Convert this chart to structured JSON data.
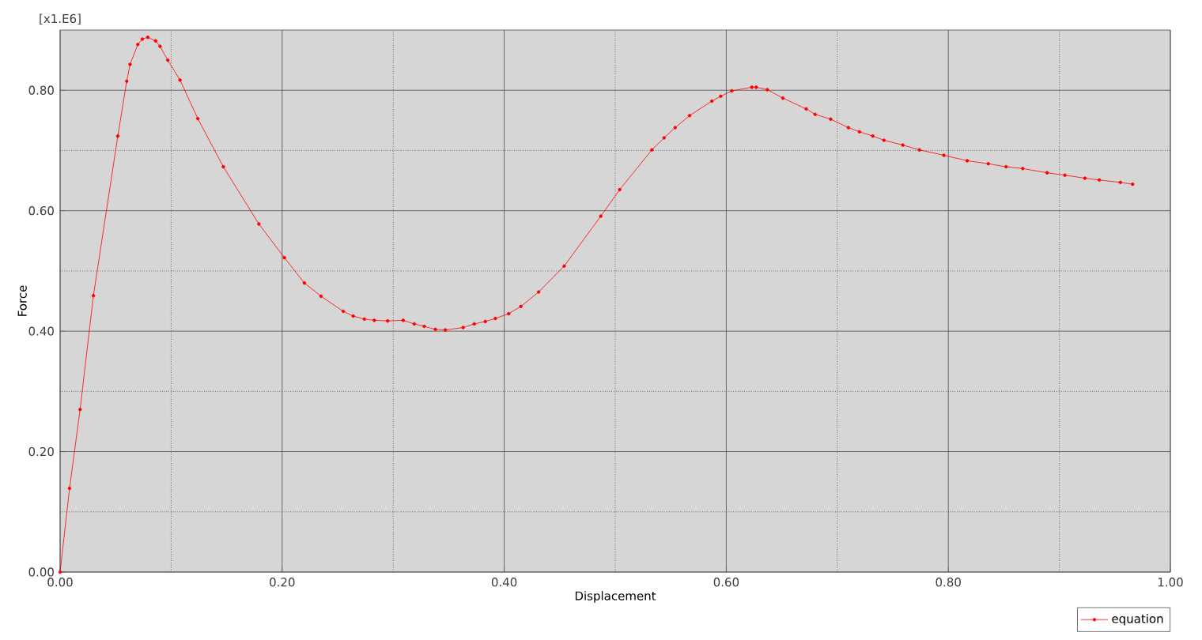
{
  "chart_data": {
    "type": "line",
    "xlabel": "Displacement",
    "ylabel": "Force",
    "annotations": [
      "[x1.E6]"
    ],
    "xlim": [
      0,
      1
    ],
    "ylim": [
      0,
      0.9
    ],
    "xticks": [
      {
        "value": 0,
        "label": "0.00"
      },
      {
        "value": 0.1,
        "label": null
      },
      {
        "value": 0.2,
        "label": "0.20"
      },
      {
        "value": 0.3,
        "label": null
      },
      {
        "value": 0.4,
        "label": "0.40"
      },
      {
        "value": 0.5,
        "label": null
      },
      {
        "value": 0.6,
        "label": "0.60"
      },
      {
        "value": 0.7,
        "label": null
      },
      {
        "value": 0.8,
        "label": "0.80"
      },
      {
        "value": 0.9,
        "label": null
      },
      {
        "value": 1,
        "label": "1.00"
      }
    ],
    "yticks": [
      {
        "value": 0,
        "label": "0.00"
      },
      {
        "value": 0.1,
        "label": null
      },
      {
        "value": 0.2,
        "label": "0.20"
      },
      {
        "value": 0.3,
        "label": null
      },
      {
        "value": 0.4,
        "label": "0.40"
      },
      {
        "value": 0.5,
        "label": null
      },
      {
        "value": 0.6,
        "label": "0.60"
      },
      {
        "value": 0.7,
        "label": null
      },
      {
        "value": 0.8,
        "label": "0.80"
      }
    ],
    "grid": true,
    "legend": "bottom right",
    "marker": "circle",
    "line_style": "solid",
    "series": [
      {
        "name": "equation",
        "color": "#ff0000",
        "x": [
          0,
          0.0085,
          0.018,
          0.03,
          0.052,
          0.06,
          0.063,
          0.07,
          0.074,
          0.079,
          0.086,
          0.09,
          0.097,
          0.108,
          0.124,
          0.147,
          0.179,
          0.202,
          0.22,
          0.235,
          0.255,
          0.264,
          0.274,
          0.283,
          0.295,
          0.309,
          0.319,
          0.328,
          0.338,
          0.347,
          0.363,
          0.373,
          0.383,
          0.392,
          0.404,
          0.415,
          0.431,
          0.454,
          0.487,
          0.504,
          0.533,
          0.544,
          0.554,
          0.567,
          0.587,
          0.595,
          0.605,
          0.623,
          0.627,
          0.637,
          0.651,
          0.672,
          0.68,
          0.694,
          0.71,
          0.72,
          0.732,
          0.742,
          0.759,
          0.774,
          0.796,
          0.817,
          0.836,
          0.852,
          0.867,
          0.889,
          0.905,
          0.923,
          0.936,
          0.955,
          0.966
        ],
        "values": [
          0,
          0.139,
          0.27,
          0.459,
          0.724,
          0.815,
          0.843,
          0.876,
          0.885,
          0.888,
          0.882,
          0.873,
          0.85,
          0.817,
          0.753,
          0.673,
          0.578,
          0.522,
          0.48,
          0.458,
          0.433,
          0.425,
          0.42,
          0.418,
          0.417,
          0.418,
          0.412,
          0.408,
          0.403,
          0.402,
          0.406,
          0.412,
          0.416,
          0.421,
          0.429,
          0.441,
          0.465,
          0.508,
          0.591,
          0.635,
          0.701,
          0.721,
          0.738,
          0.758,
          0.782,
          0.79,
          0.799,
          0.805,
          0.805,
          0.801,
          0.787,
          0.769,
          0.76,
          0.752,
          0.738,
          0.731,
          0.724,
          0.717,
          0.709,
          0.701,
          0.692,
          0.683,
          0.678,
          0.673,
          0.67,
          0.663,
          0.659,
          0.654,
          0.651,
          0.647,
          0.644
        ]
      }
    ]
  }
}
